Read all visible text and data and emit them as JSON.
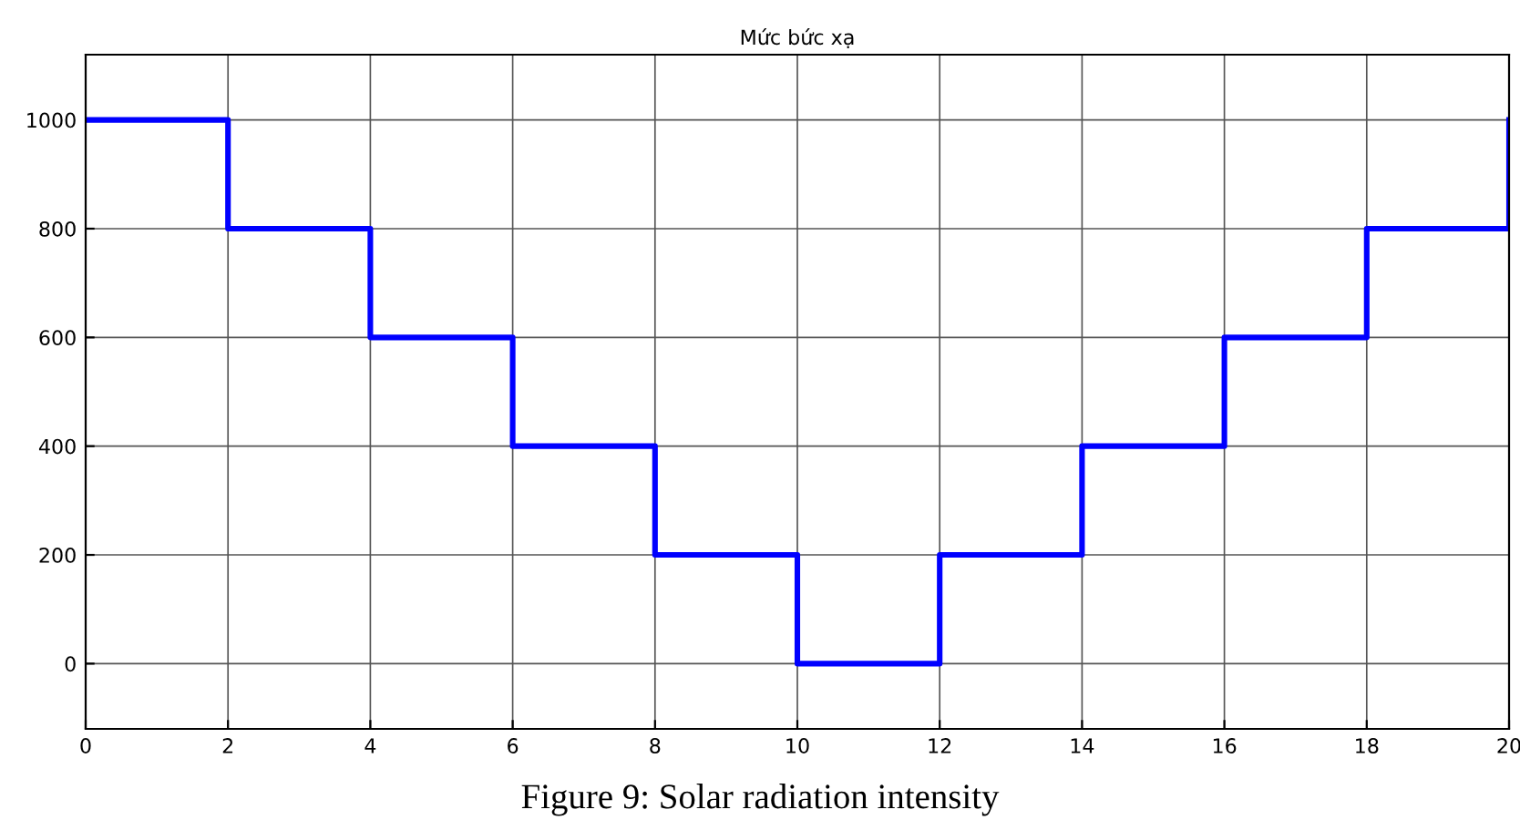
{
  "chart_data": {
    "type": "step",
    "title": "Mức bức xạ",
    "x": [
      0,
      2,
      4,
      6,
      8,
      10,
      12,
      14,
      16,
      18,
      20
    ],
    "series": [
      {
        "color": "#0000ff",
        "values": [
          1000,
          800,
          600,
          400,
          200,
          0,
          200,
          400,
          600,
          800,
          1000
        ]
      }
    ],
    "xlim": [
      0,
      20
    ],
    "xticks": [
      0,
      2,
      4,
      6,
      8,
      10,
      12,
      14,
      16,
      18,
      20
    ],
    "ylim": [
      -120,
      1120
    ],
    "yticks": [
      0,
      200,
      400,
      600,
      800,
      1000
    ],
    "grid": true,
    "line_style": "solid",
    "annotations": [
      "Figure 9: Solar radiation intensity"
    ]
  }
}
